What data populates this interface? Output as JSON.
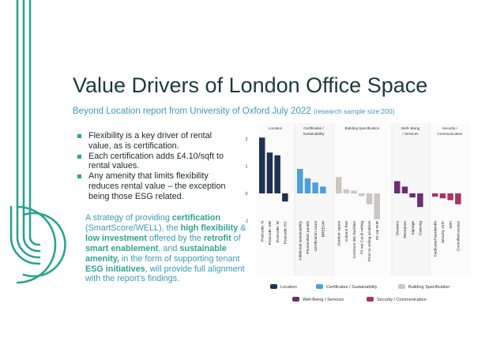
{
  "title": "Value Drivers of London Office Space",
  "subtitle": {
    "main": "Beyond Location report from University of Oxford July 2022",
    "note": "(research sample size:200)"
  },
  "bullets": [
    "Flexibility is a key driver of rental value, as is certification.",
    "Each certification adds £4.10/sqft to rental values.",
    "Any amenity that limits flexibility reduces rental value – the exception being those ESG related."
  ],
  "paragraph": {
    "p1": "A strategy of providing ",
    "b1": "certification",
    "p2": " (SmartScore/WELL), the ",
    "b2": "high flexibility",
    "p3": " & ",
    "b3": "low investment",
    "p4": " offered by the ",
    "b4": "retrofit",
    "p5": " of ",
    "b5": "smart enablement",
    "p6": ", and ",
    "b6": "sustainable amenity,",
    "p7": " in the form of supporting tenant ",
    "b7": "ESG initiatives",
    "p8": ", will provide full alignment with the report's findings."
  },
  "colors": {
    "title": "#1b3a3a",
    "accent_blue": "#3a9ab6",
    "accent_green": "#2da38e"
  },
  "chart_data": {
    "type": "bar",
    "ylim": [
      -1,
      2
    ],
    "yticks": [
      2,
      1,
      0,
      -1
    ],
    "groups": [
      {
        "name": "Location",
        "header": [
          "Location"
        ],
        "color": "#1f3252",
        "categories": [
          "Postcode: N",
          "Postcode: SW",
          "Postcode: W",
          "Postcode: EC"
        ],
        "values": [
          2.05,
          1.5,
          1.4,
          -0.3
        ]
      },
      {
        "name": "Certificates / Sustainability",
        "header": [
          "Certificates /",
          "Sustainability"
        ],
        "color": "#4e9fd9",
        "categories": [
          "Additional sustainability",
          "Photovoltaic panels",
          "Certification count",
          "BREEAM"
        ],
        "values": [
          0.9,
          0.55,
          0.4,
          0.25
        ]
      },
      {
        "name": "Building Specification",
        "header": [
          "Building Specification"
        ],
        "color": "#cbc6c1",
        "categories": [
          "Outdoor space",
          "Column free",
          "Common WC facilities",
          "Fit out Cat-B ceiling",
          "Floor to ceiling windows",
          "Fit out PnP"
        ],
        "values": [
          0.6,
          0.15,
          0.1,
          -0.1,
          -0.4,
          -0.95
        ]
      },
      {
        "name": "Well-Being / Services",
        "header": [
          "Well- Being",
          "/ Services"
        ],
        "color": "#6a2f6e",
        "categories": [
          "Showers",
          "Reception",
          "Signage",
          "Catering"
        ],
        "values": [
          0.45,
          0.25,
          -0.15,
          -0.5
        ]
      },
      {
        "name": "Security / Communication",
        "header": [
          "Security /",
          "Communication"
        ],
        "color": "#a83560",
        "categories": [
          "Dedicated bandwidth",
          "Security 24hr",
          "WiFi",
          "Controlled access"
        ],
        "values": [
          -0.12,
          -0.18,
          -0.25,
          -0.4
        ]
      }
    ],
    "legend": [
      "Location",
      "Certificates / Sustainability",
      "Building Specification",
      "Well-Being / Services",
      "Security / Communication"
    ]
  }
}
